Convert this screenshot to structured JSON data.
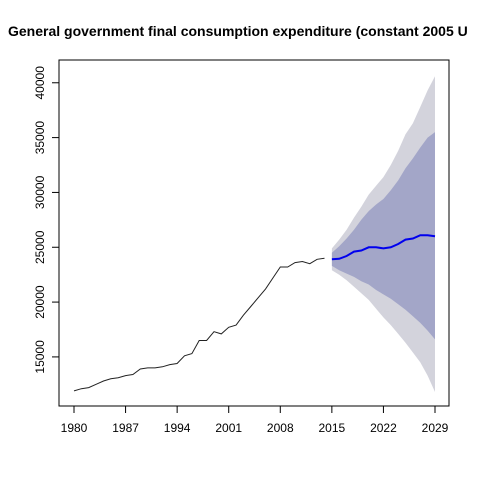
{
  "chart_data": {
    "type": "line",
    "title": "General government final consumption expenditure (constant 2005 U",
    "xlabel": "",
    "ylabel": "",
    "xlim": [
      1980,
      2029
    ],
    "ylim": [
      11800,
      40800
    ],
    "x_ticks": [
      1980,
      1987,
      1994,
      2001,
      2008,
      2015,
      2022,
      2029
    ],
    "y_ticks": [
      15000,
      20000,
      25000,
      30000,
      35000,
      40000
    ],
    "grid": false,
    "legend": "none",
    "colors": {
      "history": "#222222",
      "forecast": "#0000ee",
      "band80": "#a3a6c8",
      "band95": "#d3d3dc"
    },
    "history": {
      "x": [
        1980,
        1981,
        1982,
        1983,
        1984,
        1985,
        1986,
        1987,
        1988,
        1989,
        1990,
        1991,
        1992,
        1993,
        1994,
        1995,
        1996,
        1997,
        1998,
        1999,
        2000,
        2001,
        2002,
        2003,
        2004,
        2005,
        2006,
        2007,
        2008,
        2009,
        2010,
        2011,
        2012,
        2013,
        2014
      ],
      "y": [
        11900,
        12100,
        12200,
        12500,
        12800,
        13000,
        13100,
        13300,
        13400,
        13900,
        14000,
        14000,
        14100,
        14300,
        14400,
        15100,
        15300,
        16500,
        16500,
        17300,
        17100,
        17700,
        17900,
        18800,
        19600,
        20400,
        21200,
        22200,
        23200,
        23200,
        23600,
        23700,
        23500,
        23900,
        24000
      ]
    },
    "forecast": {
      "x": [
        2015,
        2016,
        2017,
        2018,
        2019,
        2020,
        2021,
        2022,
        2023,
        2024,
        2025,
        2026,
        2027,
        2028,
        2029
      ],
      "mean": [
        23900,
        23950,
        24200,
        24600,
        24700,
        25000,
        25000,
        24900,
        25000,
        25300,
        25700,
        25800,
        26100,
        26100,
        26000
      ],
      "lo80": [
        23300,
        22900,
        22600,
        22300,
        21900,
        21600,
        21100,
        20700,
        20300,
        19800,
        19300,
        18700,
        18100,
        17400,
        16600
      ],
      "hi80": [
        24500,
        25100,
        25800,
        26600,
        27500,
        28300,
        28900,
        29400,
        30200,
        31100,
        32200,
        33100,
        34100,
        35000,
        35500
      ],
      "lo95": [
        22900,
        22500,
        22000,
        21400,
        20800,
        20200,
        19400,
        18600,
        17900,
        17100,
        16300,
        15400,
        14500,
        13300,
        11800
      ],
      "hi95": [
        24900,
        25700,
        26600,
        27700,
        28700,
        29800,
        30600,
        31400,
        32500,
        33800,
        35300,
        36300,
        37800,
        39300,
        40600
      ]
    }
  }
}
